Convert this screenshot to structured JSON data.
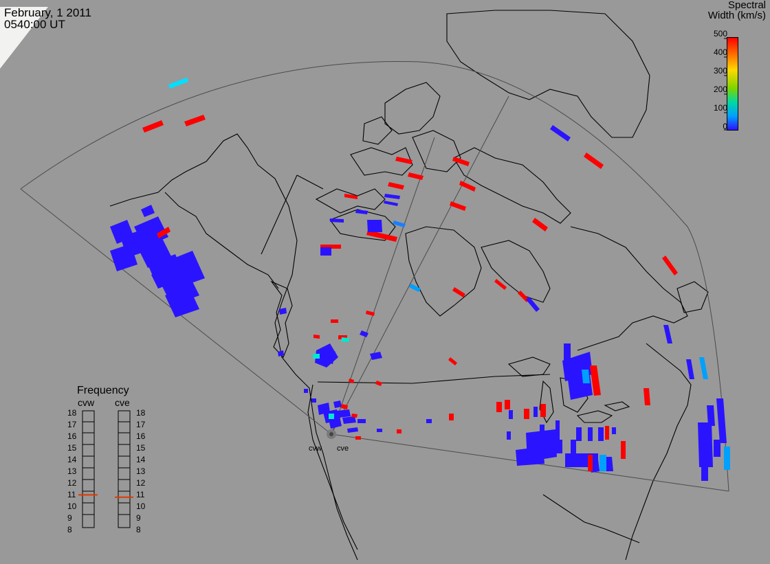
{
  "header": {
    "date": "February, 1 2011",
    "time": "0540:00 UT"
  },
  "colorbar": {
    "title_line1": "Spectral",
    "title_line2": "Width (km/s)",
    "ticks": [
      "500",
      "400",
      "300",
      "200",
      "100",
      "0"
    ]
  },
  "frequency_panel": {
    "title": "Frequency",
    "radar_left": "cvw",
    "radar_right": "cve",
    "ticks": [
      "18",
      "17",
      "16",
      "15",
      "14",
      "13",
      "12",
      "11",
      "10",
      "9",
      "8"
    ],
    "cvw_frequency_mhz": 10.8,
    "cve_frequency_mhz": 10.6,
    "marker_color": "#e03a00"
  },
  "stations": {
    "west": "cvw",
    "east": "cve"
  },
  "colors": {
    "background": "#999999",
    "coastline": "#000000",
    "field_of_view": "#444444",
    "low_width": "#2a14ff",
    "mid_width": "#00a0ff",
    "cyan_width": "#00e8d0",
    "high_width": "#ff0000"
  }
}
